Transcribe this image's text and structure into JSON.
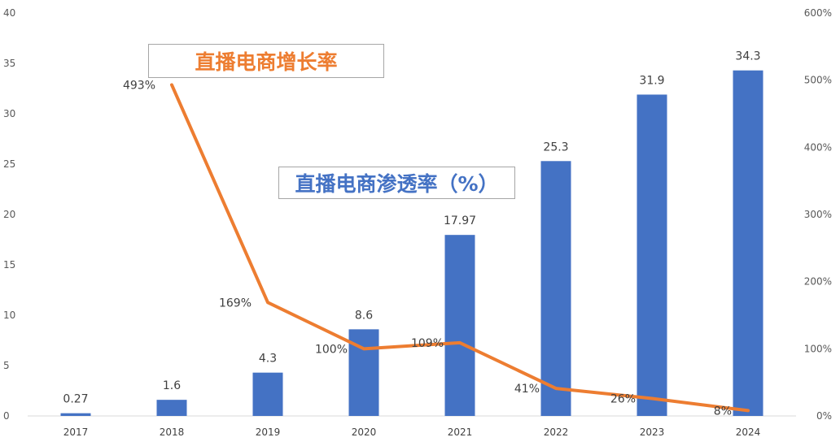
{
  "chart_data": {
    "type": "bar",
    "categories": [
      "2017",
      "2018",
      "2019",
      "2020",
      "2021",
      "2022",
      "2023",
      "2024"
    ],
    "series": [
      {
        "name": "直播电商渗透率（%）",
        "type": "bar",
        "axis": "left",
        "values": [
          0.27,
          1.6,
          4.3,
          8.6,
          17.97,
          25.3,
          31.9,
          34.3
        ],
        "labels": [
          "0.27",
          "1.6",
          "4.3",
          "8.6",
          "17.97",
          "25.3",
          "31.9",
          "34.3"
        ],
        "color": "#4472C4"
      },
      {
        "name": "直播电商增长率",
        "type": "line",
        "axis": "right",
        "values": [
          null,
          493,
          169,
          100,
          109,
          41,
          26,
          8
        ],
        "labels": [
          "",
          "493%",
          "169%",
          "100%",
          "109%",
          "41%",
          "26%",
          "8%"
        ],
        "color": "#ED7D31"
      }
    ],
    "left_axis": {
      "ylim": [
        0,
        40
      ],
      "ticks": [
        "0",
        "5",
        "10",
        "15",
        "20",
        "25",
        "30",
        "35",
        "40"
      ]
    },
    "right_axis": {
      "ylim": [
        0,
        600
      ],
      "ticks": [
        "0%",
        "100%",
        "200%",
        "300%",
        "400%",
        "500%",
        "600%"
      ]
    },
    "grid": false,
    "legend": {
      "line_label": "直播电商增长率",
      "bar_label": "直播电商渗透率（%）",
      "line_color": "#ED7D31",
      "bar_color": "#4472C4"
    }
  }
}
